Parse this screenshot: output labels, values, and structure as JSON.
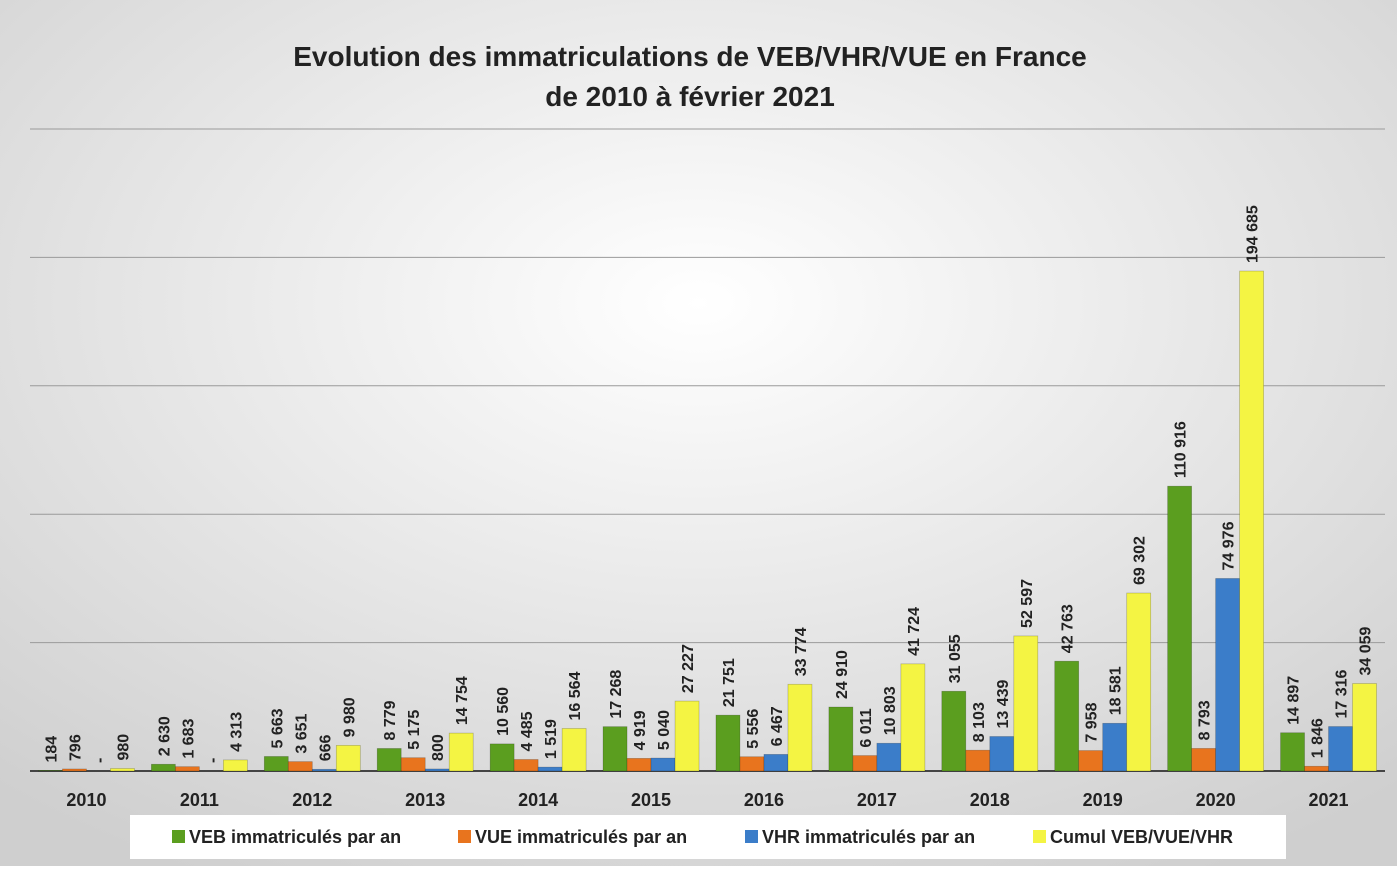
{
  "chart_data": {
    "type": "bar",
    "title": [
      "Evolution des immatriculations de VEB/VHR/VUE en France",
      "de 2010 à février 2021"
    ],
    "categories": [
      "2010",
      "2011",
      "2012",
      "2013",
      "2014",
      "2015",
      "2016",
      "2017",
      "2018",
      "2019",
      "2020",
      "2021"
    ],
    "series": [
      {
        "name": "VEB immatriculés par an",
        "color": "#5b9e1f",
        "values": [
          184,
          2630,
          5663,
          8779,
          10560,
          17268,
          21751,
          24910,
          31055,
          42763,
          110916,
          14897
        ],
        "value_labels": [
          "184",
          "2 630",
          "5 663",
          "8 779",
          "10 560",
          "17 268",
          "21 751",
          "24 910",
          "31 055",
          "42 763",
          "110 916",
          "14 897"
        ]
      },
      {
        "name": "VUE immatriculés par an",
        "color": "#e8741e",
        "values": [
          796,
          1683,
          3651,
          5175,
          4485,
          4919,
          5556,
          6011,
          8103,
          7958,
          8793,
          1846
        ],
        "value_labels": [
          "796",
          "1 683",
          "3 651",
          "5 175",
          "4 485",
          "4 919",
          "5 556",
          "6 011",
          "8 103",
          "7 958",
          "8 793",
          "1 846"
        ]
      },
      {
        "name": "VHR immatriculés par an",
        "color": "#3b7dc9",
        "values": [
          0,
          0,
          666,
          800,
          1519,
          5040,
          6467,
          10803,
          13439,
          18581,
          74976,
          17316
        ],
        "value_labels": [
          "-",
          "-",
          "666",
          "800",
          "1 519",
          "5 040",
          "6 467",
          "10 803",
          "13 439",
          "18 581",
          "74 976",
          "17 316"
        ]
      },
      {
        "name": "Cumul VEB/VUE/VHR",
        "color": "#f4f443",
        "values": [
          980,
          4313,
          9980,
          14754,
          16564,
          27227,
          33774,
          41724,
          52597,
          69302,
          194685,
          34059
        ],
        "value_labels": [
          "980",
          "4 313",
          "9 980",
          "14 754",
          "16 564",
          "27 227",
          "33 774",
          "41 724",
          "52 597",
          "69 302",
          "194 685",
          "34 059"
        ]
      }
    ],
    "ylim": [
      0,
      250000
    ],
    "yticks": [
      0,
      50000,
      100000,
      150000,
      200000,
      250000
    ],
    "grid": true,
    "legend": "bottom"
  }
}
